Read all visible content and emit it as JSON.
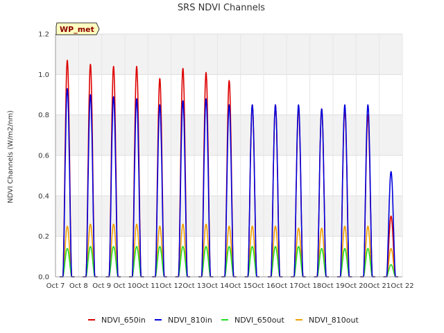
{
  "chart_data": {
    "type": "line",
    "title": "SRS NDVI Channels",
    "ylabel": "NDVI Channels (W/m2/nm)",
    "xlabel": "",
    "badge": "WP_met",
    "x_ticks": [
      "Oct 7",
      "Oct 8",
      "Oct 9",
      "Oct 10",
      "Oct 11",
      "Oct 12",
      "Oct 13",
      "Oct 14",
      "Oct 15",
      "Oct 16",
      "Oct 17",
      "Oct 18",
      "Oct 19",
      "Oct 20",
      "Oct 21",
      "Oct 22"
    ],
    "y_ticks": [
      "0.0",
      "0.2",
      "0.4",
      "0.6",
      "0.8",
      "1.0",
      "1.2"
    ],
    "xlim": [
      "2023-10-07",
      "2023-10-22"
    ],
    "ylim": [
      0,
      1.2
    ],
    "grid": true,
    "legend_position": "bottom",
    "series_note_daily_peaks": "daily maximum per day Oct 7 - Oct 21",
    "series": [
      {
        "name": "NDVI_650in",
        "color": "#dd0000",
        "peak_dates": [
          "2023-10-07",
          "2023-10-08",
          "2023-10-09",
          "2023-10-10",
          "2023-10-11",
          "2023-10-12",
          "2023-10-13",
          "2023-10-14",
          "2023-10-15",
          "2023-10-16",
          "2023-10-17",
          "2023-10-18",
          "2023-10-19",
          "2023-10-20",
          "2023-10-21"
        ],
        "values": [
          1.07,
          1.05,
          1.04,
          1.04,
          0.98,
          1.03,
          1.01,
          0.97,
          0.85,
          0.85,
          0.83,
          0.83,
          0.83,
          0.8,
          0.3
        ]
      },
      {
        "name": "NDVI_810in",
        "color": "#0000dd",
        "peak_dates": [
          "2023-10-07",
          "2023-10-08",
          "2023-10-09",
          "2023-10-10",
          "2023-10-11",
          "2023-10-12",
          "2023-10-13",
          "2023-10-14",
          "2023-10-15",
          "2023-10-16",
          "2023-10-17",
          "2023-10-18",
          "2023-10-19",
          "2023-10-20",
          "2023-10-21"
        ],
        "values": [
          0.93,
          0.9,
          0.89,
          0.88,
          0.85,
          0.87,
          0.88,
          0.85,
          0.85,
          0.85,
          0.85,
          0.83,
          0.85,
          0.85,
          0.52
        ]
      },
      {
        "name": "NDVI_650out",
        "color": "#22dd22",
        "peak_dates": [
          "2023-10-07",
          "2023-10-08",
          "2023-10-09",
          "2023-10-10",
          "2023-10-11",
          "2023-10-12",
          "2023-10-13",
          "2023-10-14",
          "2023-10-15",
          "2023-10-16",
          "2023-10-17",
          "2023-10-18",
          "2023-10-19",
          "2023-10-20",
          "2023-10-21"
        ],
        "values": [
          0.14,
          0.15,
          0.15,
          0.15,
          0.15,
          0.15,
          0.15,
          0.15,
          0.15,
          0.15,
          0.15,
          0.14,
          0.14,
          0.14,
          0.06
        ]
      },
      {
        "name": "NDVI_810out",
        "color": "#f0a000",
        "peak_dates": [
          "2023-10-07",
          "2023-10-08",
          "2023-10-09",
          "2023-10-10",
          "2023-10-11",
          "2023-10-12",
          "2023-10-13",
          "2023-10-14",
          "2023-10-15",
          "2023-10-16",
          "2023-10-17",
          "2023-10-18",
          "2023-10-19",
          "2023-10-20",
          "2023-10-21"
        ],
        "values": [
          0.25,
          0.26,
          0.26,
          0.26,
          0.25,
          0.26,
          0.26,
          0.25,
          0.25,
          0.25,
          0.24,
          0.24,
          0.25,
          0.25,
          0.14
        ]
      }
    ]
  }
}
